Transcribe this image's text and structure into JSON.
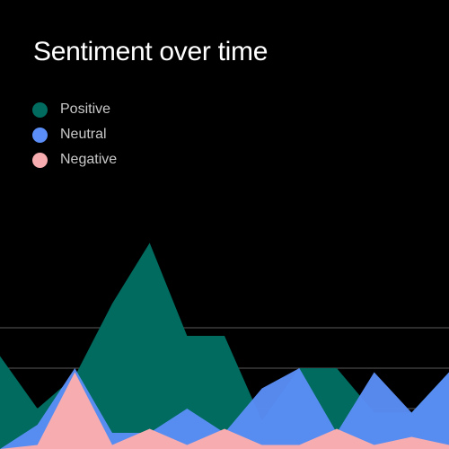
{
  "chart_data": {
    "type": "area",
    "title": "Sentiment over time",
    "xlabel": "",
    "ylabel": "",
    "x": [
      0,
      1,
      2,
      3,
      4,
      5,
      6,
      7,
      8,
      9,
      10,
      11,
      12
    ],
    "ylim": [
      0,
      30
    ],
    "grid": true,
    "legend_position": "top-left",
    "series": [
      {
        "name": "Positive",
        "color": "#016b5f",
        "values": [
          11.5,
          5,
          9,
          18,
          25.5,
          14,
          14,
          3.5,
          10,
          10,
          4.5,
          4.5,
          9.5
        ]
      },
      {
        "name": "Neutral",
        "color": "#5b8ff7",
        "values": [
          0,
          3,
          10,
          2,
          2,
          5,
          2,
          7.5,
          10,
          2,
          9.5,
          4.5,
          9.5
        ]
      },
      {
        "name": "Negative",
        "color": "#f7adb0",
        "values": [
          0,
          0.5,
          9.5,
          0.5,
          2.5,
          0.5,
          2.5,
          0.5,
          0.5,
          2.5,
          0.5,
          1.5,
          0.5
        ]
      }
    ]
  }
}
